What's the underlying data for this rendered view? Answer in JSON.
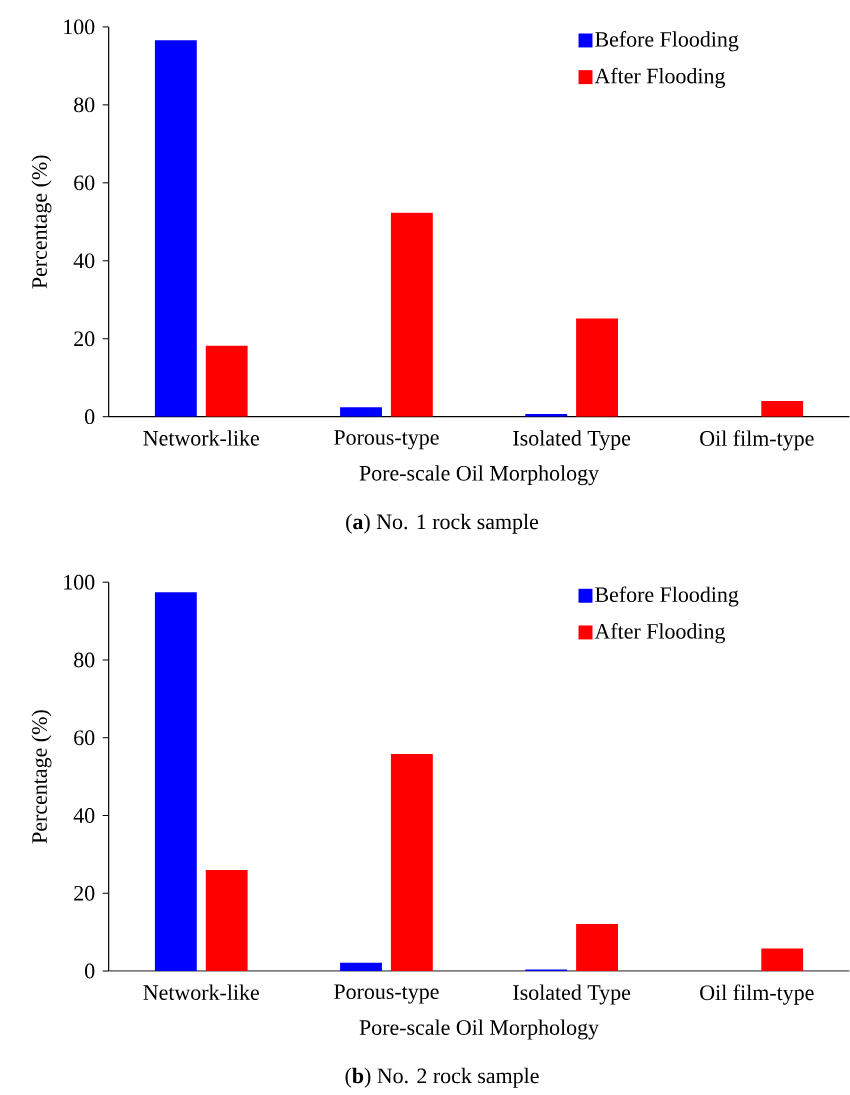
{
  "chart_data": [
    {
      "type": "bar",
      "title": "(**a**) No. 1 rock sample",
      "xlabel": "Pore-scale Oil Morphology",
      "ylabel": "Percentage (%)",
      "categories": [
        "Network-like",
        "Porous-type",
        "Isolated Type",
        "Oil film-type"
      ],
      "series": [
        {
          "name": "Before Flooding",
          "color": "#0000ff",
          "values": [
            96.6,
            2.4,
            0.7,
            0
          ]
        },
        {
          "name": "After Flooding",
          "color": "#ff0000",
          "values": [
            18.2,
            52.3,
            25.2,
            4.0
          ]
        }
      ],
      "ylim": [
        0,
        100
      ],
      "yticks": [
        0,
        20,
        40,
        60,
        80,
        100
      ],
      "legend": "top right",
      "grid": false
    },
    {
      "type": "bar",
      "title": "(**b**) No. 2 rock sample",
      "xlabel": "Pore-scale Oil Morphology",
      "ylabel": "Percentage (%)",
      "categories": [
        "Network-like",
        "Porous-type",
        "Isolated Type",
        "Oil film-type"
      ],
      "series": [
        {
          "name": "Before Flooding",
          "color": "#0000ff",
          "values": [
            97.4,
            2.1,
            0.4,
            0
          ]
        },
        {
          "name": "After Flooding",
          "color": "#ff0000",
          "values": [
            26.0,
            55.8,
            12.1,
            5.8
          ]
        }
      ],
      "ylim": [
        0,
        100
      ],
      "yticks": [
        0,
        20,
        40,
        60,
        80,
        100
      ],
      "legend": "top right",
      "grid": false
    }
  ]
}
